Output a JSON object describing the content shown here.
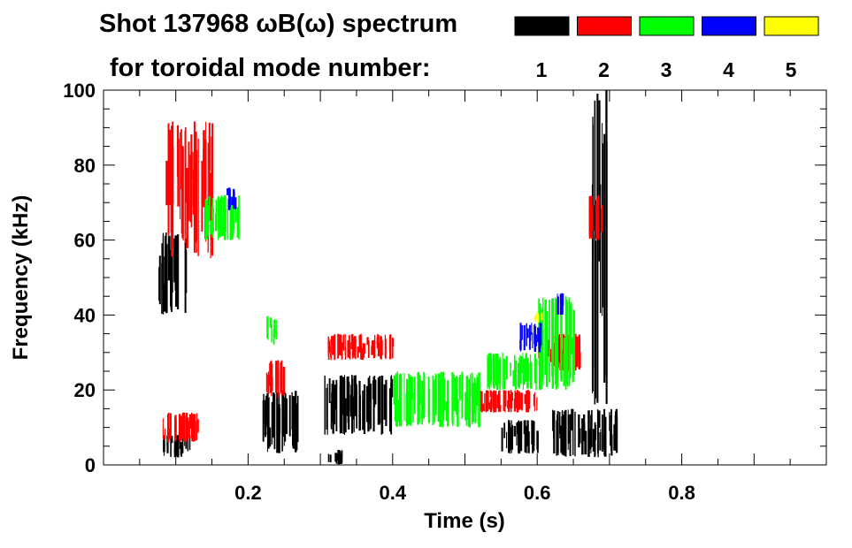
{
  "chart_data": {
    "type": "heatmap",
    "title_line1": "Shot 137968 ωB(ω) spectrum",
    "title_line2": "for toroidal mode number:",
    "xlabel": "Time (s)",
    "ylabel": "Frequency (kHz)",
    "xlim": [
      0.0,
      1.0
    ],
    "ylim": [
      0,
      100
    ],
    "x_ticks": [
      0.2,
      0.4,
      0.6,
      0.8
    ],
    "x_tick_labels": [
      "0.2",
      "0.4",
      "0.6",
      "0.8"
    ],
    "y_ticks": [
      0,
      20,
      40,
      60,
      80,
      100
    ],
    "y_tick_labels": [
      "0",
      "20",
      "40",
      "60",
      "80",
      "100"
    ],
    "grid": false,
    "legend_placement": "top-right",
    "legend": [
      {
        "label": "1",
        "color": "#000000"
      },
      {
        "label": "2",
        "color": "#ff0000"
      },
      {
        "label": "3",
        "color": "#00ff00"
      },
      {
        "label": "4",
        "color": "#0000ff"
      },
      {
        "label": "5",
        "color": "#ffff00"
      }
    ],
    "series": [
      {
        "name": "1",
        "color": "#000000",
        "regions": [
          {
            "t": [
              0.075,
              0.115
            ],
            "f": [
              40,
              62
            ]
          },
          {
            "t": [
              0.08,
              0.12
            ],
            "f": [
              2,
              8
            ]
          },
          {
            "t": [
              0.22,
              0.27
            ],
            "f": [
              3,
              20
            ]
          },
          {
            "t": [
              0.305,
              0.4
            ],
            "f": [
              8,
              24
            ]
          },
          {
            "t": [
              0.31,
              0.33
            ],
            "f": [
              0,
              4
            ]
          },
          {
            "t": [
              0.55,
              0.6
            ],
            "f": [
              3,
              12
            ]
          },
          {
            "t": [
              0.62,
              0.71
            ],
            "f": [
              2,
              15
            ]
          },
          {
            "t": [
              0.675,
              0.695
            ],
            "f": [
              15,
              100
            ]
          }
        ]
      },
      {
        "name": "2",
        "color": "#ff0000",
        "regions": [
          {
            "t": [
              0.085,
              0.15
            ],
            "f": [
              55,
              92
            ]
          },
          {
            "t": [
              0.08,
              0.13
            ],
            "f": [
              6,
              14
            ]
          },
          {
            "t": [
              0.225,
              0.25
            ],
            "f": [
              18,
              28
            ]
          },
          {
            "t": [
              0.31,
              0.4
            ],
            "f": [
              28,
              35
            ]
          },
          {
            "t": [
              0.52,
              0.6
            ],
            "f": [
              14,
              20
            ]
          },
          {
            "t": [
              0.6,
              0.66
            ],
            "f": [
              25,
              35
            ]
          },
          {
            "t": [
              0.67,
              0.69
            ],
            "f": [
              60,
              72
            ]
          }
        ]
      },
      {
        "name": "3",
        "color": "#00ff00",
        "regions": [
          {
            "t": [
              0.14,
              0.19
            ],
            "f": [
              60,
              72
            ]
          },
          {
            "t": [
              0.225,
              0.24
            ],
            "f": [
              32,
              40
            ]
          },
          {
            "t": [
              0.4,
              0.52
            ],
            "f": [
              10,
              25
            ]
          },
          {
            "t": [
              0.53,
              0.6
            ],
            "f": [
              20,
              30
            ]
          },
          {
            "t": [
              0.6,
              0.65
            ],
            "f": [
              20,
              45
            ]
          }
        ]
      },
      {
        "name": "4",
        "color": "#0000ff",
        "regions": [
          {
            "t": [
              0.17,
              0.185
            ],
            "f": [
              68,
              74
            ]
          },
          {
            "t": [
              0.575,
              0.605
            ],
            "f": [
              30,
              38
            ]
          },
          {
            "t": [
              0.625,
              0.635
            ],
            "f": [
              40,
              46
            ]
          }
        ]
      },
      {
        "name": "5",
        "color": "#ffff00",
        "regions": [
          {
            "t": [
              0.595,
              0.605
            ],
            "f": [
              38,
              41
            ]
          }
        ]
      }
    ]
  }
}
